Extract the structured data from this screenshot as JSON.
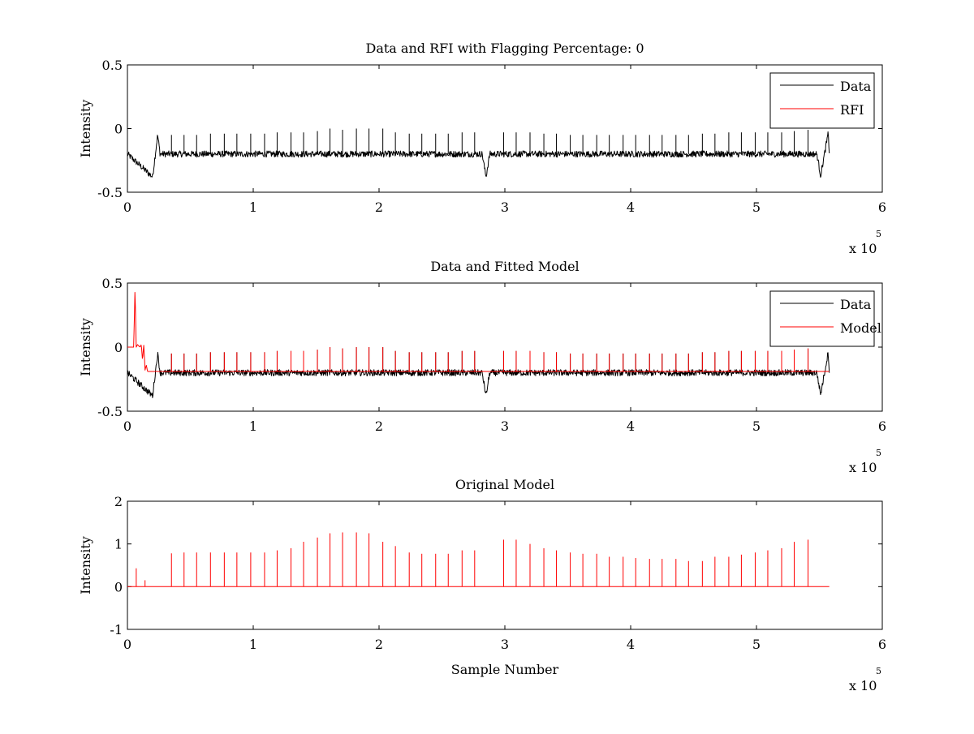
{
  "figure": {
    "background": "#ffffff"
  },
  "chart_data": [
    {
      "type": "line",
      "title": "Data and RFI with Flagging Percentage: 0",
      "xlabel": "",
      "ylabel": "Intensity",
      "xlim": [
        0,
        6
      ],
      "ylim": [
        -0.5,
        0.5
      ],
      "x_ticks": [
        "0",
        "1",
        "2",
        "3",
        "4",
        "5",
        "6"
      ],
      "y_ticks": [
        "-0.5",
        "0",
        "0.5"
      ],
      "x_multiplier": "x 10",
      "x_exponent": "5",
      "legend": {
        "placement": "top-right"
      },
      "baseline": -0.2,
      "series": [
        {
          "name": "Data",
          "color": "#000000",
          "x": [
            0,
            0.2,
            0.24,
            0.26,
            2.82,
            2.85,
            2.88,
            5.48,
            5.51,
            5.57,
            5.58
          ],
          "y": [
            -0.2,
            -0.38,
            -0.05,
            -0.2,
            -0.2,
            -0.38,
            -0.2,
            -0.2,
            -0.37,
            -0.04,
            -0.2
          ],
          "spikes_x": [
            0.35,
            0.45,
            0.55,
            0.66,
            0.77,
            0.87,
            0.98,
            1.09,
            1.19,
            1.3,
            1.4,
            1.51,
            1.61,
            1.71,
            1.82,
            1.92,
            2.03,
            2.13,
            2.24,
            2.34,
            2.45,
            2.55,
            2.66,
            2.76,
            2.99,
            3.09,
            3.2,
            3.31,
            3.41,
            3.52,
            3.62,
            3.73,
            3.83,
            3.94,
            4.04,
            4.15,
            4.25,
            4.36,
            4.46,
            4.57,
            4.67,
            4.78,
            4.88,
            4.99,
            5.09,
            5.2,
            5.3,
            5.41
          ],
          "spikes_y": [
            -0.05,
            -0.05,
            -0.05,
            -0.04,
            -0.04,
            -0.04,
            -0.04,
            -0.04,
            -0.03,
            -0.03,
            -0.03,
            -0.02,
            0.0,
            -0.01,
            0.0,
            0.0,
            0.0,
            -0.03,
            -0.04,
            -0.04,
            -0.04,
            -0.04,
            -0.03,
            -0.03,
            -0.03,
            -0.03,
            -0.03,
            -0.04,
            -0.04,
            -0.05,
            -0.05,
            -0.05,
            -0.05,
            -0.05,
            -0.05,
            -0.05,
            -0.05,
            -0.05,
            -0.05,
            -0.04,
            -0.04,
            -0.03,
            -0.03,
            -0.03,
            -0.03,
            -0.03,
            -0.02,
            -0.01
          ]
        },
        {
          "name": "RFI",
          "color": "#ff0000",
          "x": [],
          "y": []
        }
      ]
    },
    {
      "type": "line",
      "title": "Data and Fitted Model",
      "xlabel": "",
      "ylabel": "Intensity",
      "xlim": [
        0,
        6
      ],
      "ylim": [
        -0.5,
        0.5
      ],
      "x_ticks": [
        "0",
        "1",
        "2",
        "3",
        "4",
        "5",
        "6"
      ],
      "y_ticks": [
        "-0.5",
        "0",
        "0.5"
      ],
      "x_multiplier": "x 10",
      "x_exponent": "5",
      "legend": {
        "placement": "top-right"
      },
      "baseline": -0.2,
      "series": [
        {
          "name": "Data",
          "color": "#000000",
          "x": [
            0,
            0.2,
            0.24,
            0.26,
            2.82,
            2.85,
            2.88,
            5.48,
            5.51,
            5.57,
            5.58
          ],
          "y": [
            -0.2,
            -0.38,
            -0.05,
            -0.2,
            -0.2,
            -0.38,
            -0.2,
            -0.2,
            -0.37,
            -0.04,
            -0.2
          ],
          "spikes_x": [
            0.35,
            0.45,
            0.55,
            0.66,
            0.77,
            0.87,
            0.98,
            1.09,
            1.19,
            1.3,
            1.4,
            1.51,
            1.61,
            1.71,
            1.82,
            1.92,
            2.03,
            2.13,
            2.24,
            2.34,
            2.45,
            2.55,
            2.66,
            2.76,
            2.99,
            3.09,
            3.2,
            3.31,
            3.41,
            3.52,
            3.62,
            3.73,
            3.83,
            3.94,
            4.04,
            4.15,
            4.25,
            4.36,
            4.46,
            4.57,
            4.67,
            4.78,
            4.88,
            4.99,
            5.09,
            5.2,
            5.3,
            5.41
          ],
          "spikes_y": [
            -0.05,
            -0.05,
            -0.05,
            -0.04,
            -0.04,
            -0.04,
            -0.04,
            -0.04,
            -0.03,
            -0.03,
            -0.03,
            -0.02,
            0.0,
            -0.01,
            0.0,
            0.0,
            0.0,
            -0.03,
            -0.04,
            -0.04,
            -0.04,
            -0.04,
            -0.03,
            -0.03,
            -0.03,
            -0.03,
            -0.03,
            -0.04,
            -0.04,
            -0.05,
            -0.05,
            -0.05,
            -0.05,
            -0.05,
            -0.05,
            -0.05,
            -0.05,
            -0.05,
            -0.05,
            -0.04,
            -0.04,
            -0.03,
            -0.03,
            -0.03,
            -0.03,
            -0.03,
            -0.02,
            -0.01
          ]
        },
        {
          "name": "Model",
          "color": "#ff0000",
          "x": [
            0,
            0.05,
            0.06,
            0.07,
            0.08,
            0.1,
            0.11,
            0.12,
            0.13,
            0.14,
            0.15,
            0.16,
            5.58
          ],
          "y": [
            0.0,
            0.0,
            0.45,
            0.0,
            0.02,
            0.0,
            0.02,
            -0.1,
            0.02,
            -0.18,
            -0.14,
            -0.19,
            -0.19
          ],
          "baseline": -0.19,
          "spikes_x": [
            0.35,
            0.45,
            0.55,
            0.66,
            0.77,
            0.87,
            0.98,
            1.09,
            1.19,
            1.3,
            1.4,
            1.51,
            1.61,
            1.71,
            1.82,
            1.92,
            2.03,
            2.13,
            2.24,
            2.34,
            2.45,
            2.55,
            2.66,
            2.76,
            2.99,
            3.09,
            3.2,
            3.31,
            3.41,
            3.52,
            3.62,
            3.73,
            3.83,
            3.94,
            4.04,
            4.15,
            4.25,
            4.36,
            4.46,
            4.57,
            4.67,
            4.78,
            4.88,
            4.99,
            5.09,
            5.2,
            5.3,
            5.41
          ],
          "spikes_y": [
            -0.05,
            -0.05,
            -0.05,
            -0.04,
            -0.04,
            -0.04,
            -0.04,
            -0.04,
            -0.03,
            -0.03,
            -0.03,
            -0.02,
            0.0,
            -0.01,
            0.0,
            0.0,
            0.0,
            -0.03,
            -0.04,
            -0.04,
            -0.04,
            -0.04,
            -0.03,
            -0.03,
            -0.03,
            -0.03,
            -0.03,
            -0.04,
            -0.04,
            -0.05,
            -0.05,
            -0.05,
            -0.05,
            -0.05,
            -0.05,
            -0.05,
            -0.05,
            -0.05,
            -0.05,
            -0.04,
            -0.04,
            -0.03,
            -0.03,
            -0.03,
            -0.03,
            -0.03,
            -0.02,
            -0.01
          ]
        }
      ]
    },
    {
      "type": "line",
      "title": "Original Model",
      "xlabel": "Sample Number",
      "ylabel": "Intensity",
      "xlim": [
        0,
        6
      ],
      "ylim": [
        -1,
        2
      ],
      "x_ticks": [
        "0",
        "1",
        "2",
        "3",
        "4",
        "5",
        "6"
      ],
      "y_ticks": [
        "-1",
        "0",
        "1",
        "2"
      ],
      "x_multiplier": "x 10",
      "x_exponent": "5",
      "legend": null,
      "baseline": 0,
      "series": [
        {
          "color": "#ff0000",
          "x": [
            0,
            5.58
          ],
          "y": [
            0,
            0
          ],
          "spikes_x": [
            0.07,
            0.14,
            0.35,
            0.45,
            0.55,
            0.66,
            0.77,
            0.87,
            0.98,
            1.09,
            1.19,
            1.3,
            1.4,
            1.51,
            1.61,
            1.71,
            1.82,
            1.92,
            2.03,
            2.13,
            2.24,
            2.34,
            2.45,
            2.55,
            2.66,
            2.76,
            2.99,
            3.09,
            3.2,
            3.31,
            3.41,
            3.52,
            3.62,
            3.73,
            3.83,
            3.94,
            4.04,
            4.15,
            4.25,
            4.36,
            4.46,
            4.57,
            4.67,
            4.78,
            4.88,
            4.99,
            5.09,
            5.2,
            5.3,
            5.41
          ],
          "spikes_y": [
            0.43,
            0.15,
            0.78,
            0.8,
            0.8,
            0.8,
            0.8,
            0.8,
            0.8,
            0.8,
            0.85,
            0.9,
            1.05,
            1.15,
            1.25,
            1.27,
            1.27,
            1.25,
            1.05,
            0.95,
            0.8,
            0.77,
            0.77,
            0.77,
            0.85,
            0.85,
            1.1,
            1.1,
            1.0,
            0.9,
            0.85,
            0.8,
            0.77,
            0.77,
            0.7,
            0.7,
            0.67,
            0.65,
            0.65,
            0.65,
            0.6,
            0.6,
            0.7,
            0.7,
            0.75,
            0.8,
            0.85,
            0.9,
            1.05,
            1.1
          ]
        }
      ]
    }
  ]
}
